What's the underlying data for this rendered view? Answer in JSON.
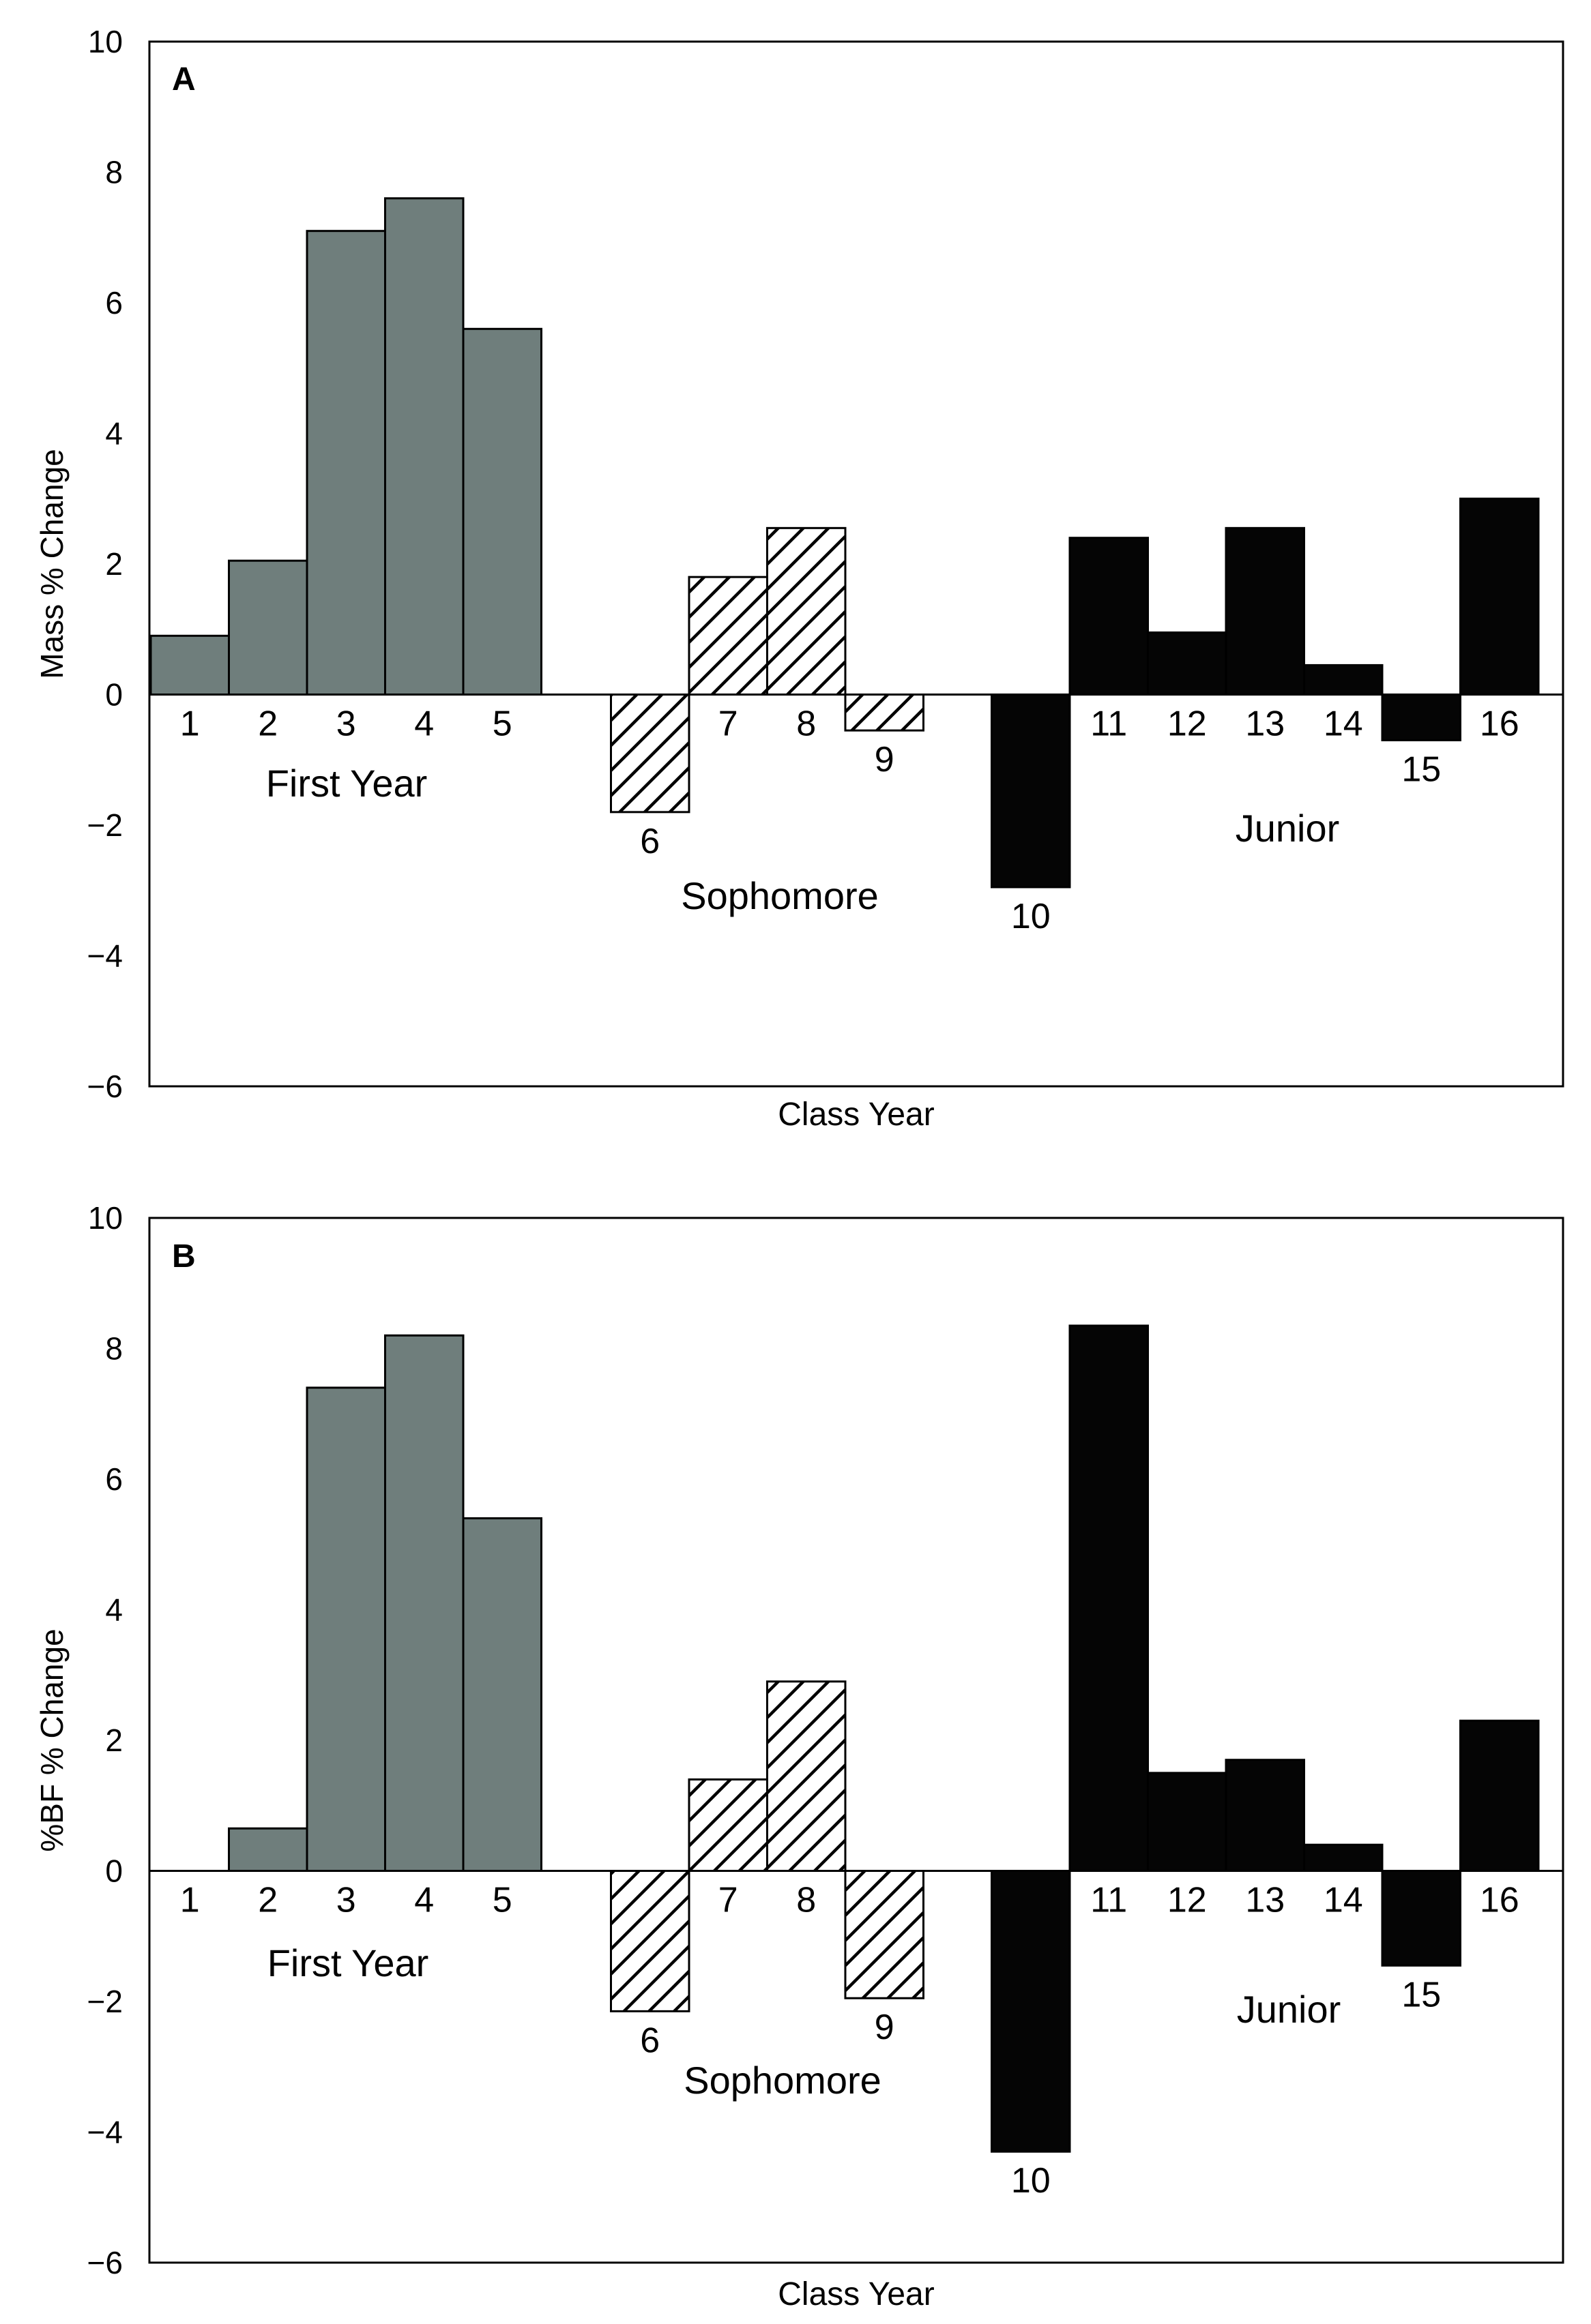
{
  "chart_data": [
    {
      "type": "bar",
      "panel_label": "A",
      "xlabel": "Class Year",
      "ylabel": "Mass % Change",
      "ylim": [
        -6,
        10
      ],
      "yticks": [
        10,
        8,
        6,
        4,
        2,
        0,
        -2,
        -4,
        -6
      ],
      "ytick_labels": [
        "10",
        "8",
        "6",
        "4",
        "2",
        "0",
        "−2",
        "−4",
        "−6"
      ],
      "grid": false,
      "legend": "none",
      "group_labels": [
        "First Year",
        "Sophomore",
        "Junior"
      ],
      "categories": [
        "1",
        "2",
        "3",
        "4",
        "5",
        "6",
        "7",
        "8",
        "9",
        "10",
        "11",
        "12",
        "13",
        "14",
        "15",
        "16"
      ],
      "values": [
        0.9,
        2.05,
        7.1,
        7.6,
        5.6,
        -1.8,
        1.8,
        2.55,
        -0.55,
        -2.95,
        2.4,
        0.95,
        2.55,
        0.45,
        -0.7,
        3.0
      ],
      "groups": [
        "First Year",
        "First Year",
        "First Year",
        "First Year",
        "First Year",
        "Sophomore",
        "Sophomore",
        "Sophomore",
        "Sophomore",
        "Junior",
        "Junior",
        "Junior",
        "Junior",
        "Junior",
        "Junior",
        "Junior"
      ]
    },
    {
      "type": "bar",
      "panel_label": "B",
      "xlabel": "Class Year",
      "ylabel": "%BF % Change",
      "ylim": [
        -6,
        10
      ],
      "yticks": [
        10,
        8,
        6,
        4,
        2,
        0,
        -2,
        -4,
        -6
      ],
      "ytick_labels": [
        "10",
        "8",
        "6",
        "4",
        "2",
        "0",
        "−2",
        "−4",
        "−6"
      ],
      "grid": false,
      "legend": "none",
      "group_labels": [
        "First Year",
        "Sophomore",
        "Junior"
      ],
      "categories": [
        "1",
        "2",
        "3",
        "4",
        "5",
        "6",
        "7",
        "8",
        "9",
        "10",
        "11",
        "12",
        "13",
        "14",
        "15",
        "16"
      ],
      "values": [
        0.0,
        0.65,
        7.4,
        8.2,
        5.4,
        -2.15,
        1.4,
        2.9,
        -1.95,
        -4.3,
        8.35,
        1.5,
        1.7,
        0.4,
        -1.45,
        2.3
      ],
      "groups": [
        "First Year",
        "First Year",
        "First Year",
        "First Year",
        "First Year",
        "Sophomore",
        "Sophomore",
        "Sophomore",
        "Sophomore",
        "Junior",
        "Junior",
        "Junior",
        "Junior",
        "Junior",
        "Junior",
        "Junior"
      ]
    }
  ],
  "colors": {
    "First Year": "#6f7e7c",
    "Sophomore": "hatch",
    "Junior": "#050505",
    "axis": "#000000"
  }
}
